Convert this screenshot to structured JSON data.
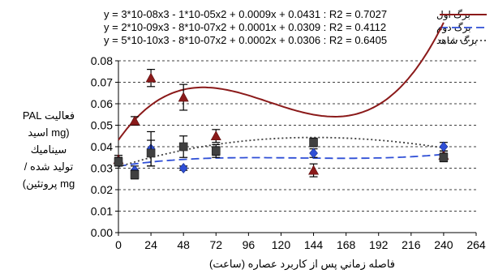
{
  "chart_data": {
    "type": "scatter",
    "xlabel": "فاصله زماني پس از كاربرد عصاره (ساعت)",
    "ylabel_lines": [
      "فعالیت PAL",
      "(mg اسید",
      "سینامیك",
      "تولید شده /",
      "mg پروتئین)"
    ],
    "x_ticks": [
      0,
      24,
      48,
      72,
      96,
      120,
      144,
      168,
      192,
      216,
      240,
      264
    ],
    "y_ticks": [
      "0.00",
      "0.01",
      "0.02",
      "0.03",
      "0.04",
      "0.05",
      "0.06",
      "0.07",
      "0.08"
    ],
    "xlim": [
      0,
      264
    ],
    "ylim": [
      0,
      0.08
    ],
    "grid": "horizontal dashed",
    "legend_position": "top-right",
    "equations": [
      "y = 3*10-08x3 - 1*10-05x2 + 0.0009x + 0.0431 : R2 = 0.7027",
      "y = 2*10-09x3 - 8*10-07x2 + 0.0001x + 0.0309 : R2 = 0.4112",
      "y = 5*10-10x3 - 8*10-07x2 + 0.0002x + 0.0306 : R2 = 0.6405"
    ],
    "series": [
      {
        "name": "برگ اول",
        "marker": "triangle",
        "color": "#8b1a1a",
        "line_style": "solid",
        "x": [
          0,
          12,
          24,
          48,
          72,
          144,
          240
        ],
        "y": [
          0.034,
          0.052,
          0.072,
          0.063,
          0.045,
          0.029,
          0.036
        ],
        "err": [
          0.002,
          0.002,
          0.004,
          0.006,
          0.003,
          0.003,
          0.002
        ],
        "trend_coeffs": [
          0.0431,
          0.0009,
          -1e-05,
          3e-08
        ]
      },
      {
        "name": "برگ دوم",
        "marker": "diamond",
        "color": "#2f4fd6",
        "line_style": "dashed",
        "x": [
          0,
          12,
          24,
          48,
          72,
          144,
          240
        ],
        "y": [
          0.033,
          0.029,
          0.039,
          0.03,
          0.038,
          0.037,
          0.04
        ],
        "err": [
          0.002,
          0.002,
          0.008,
          0.001,
          0.003,
          0.002,
          0.002
        ],
        "trend_coeffs": [
          0.0309,
          0.0001,
          -8e-07,
          2e-09
        ]
      },
      {
        "name": "برگ شاهد",
        "marker": "square",
        "color": "#404040",
        "line_style": "dotted",
        "x": [
          0,
          12,
          24,
          48,
          72,
          144,
          240
        ],
        "y": [
          0.033,
          0.027,
          0.037,
          0.04,
          0.038,
          0.042,
          0.035
        ],
        "err": [
          0.002,
          0.002,
          0.006,
          0.005,
          0.002,
          0.002,
          0.002
        ],
        "trend_coeffs": [
          0.0306,
          0.0002,
          -8e-07,
          5e-10
        ]
      }
    ]
  }
}
